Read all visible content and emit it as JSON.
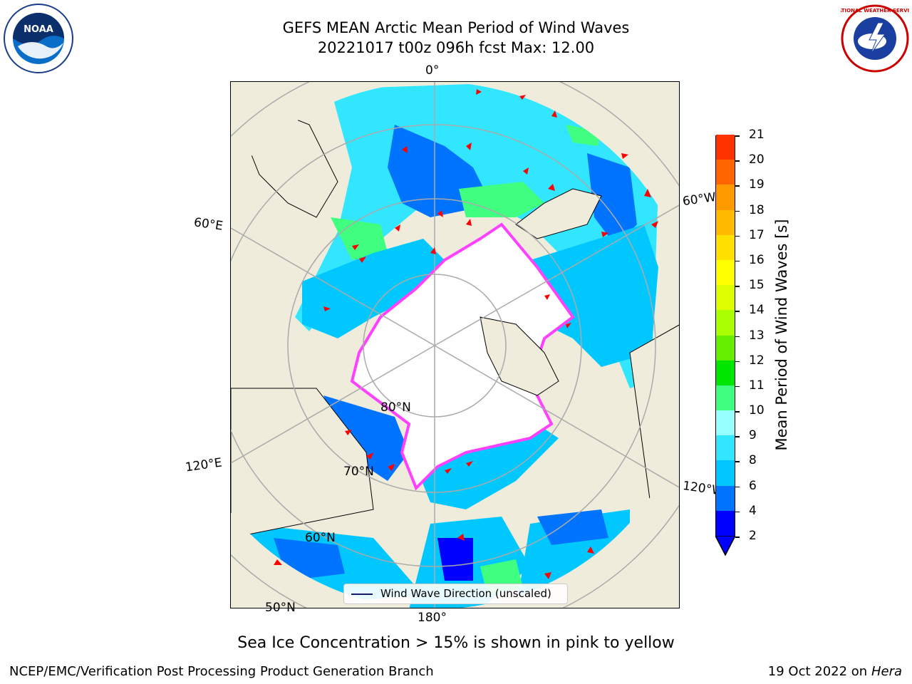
{
  "header": {
    "title_line1": "GEFS MEAN Arctic Mean Period of Wind Waves",
    "title_line2": "20221017 t00z 096h fcst   Max: 12.00"
  },
  "logos": {
    "left": "NOAA",
    "right": "NATIONAL WEATHER SERVICE"
  },
  "map": {
    "labels": {
      "lon_0": "0°",
      "lon_60w": "60°W",
      "lon_60e": "60°E",
      "lon_120e": "120°E",
      "lon_120w": "120°W",
      "lon_180": "180°",
      "lat_80": "80°N",
      "lat_70": "70°N",
      "lat_60": "60°N",
      "lat_50": "50°N"
    },
    "legend": "Wind Wave Direction (unscaled)",
    "colors": {
      "land": "#efecdc",
      "ice": "#ffffff",
      "ice_edge": "#ff40ff",
      "arrows": "#ff0000"
    }
  },
  "colorbar": {
    "label": "Mean Period of Wind Waves [s]",
    "ticks": [
      "2",
      "4",
      "6",
      "8",
      "9",
      "10",
      "11",
      "12",
      "13",
      "14",
      "15",
      "16",
      "17",
      "18",
      "19",
      "20",
      "21"
    ],
    "colors": [
      "#0000ff",
      "#0073ff",
      "#00c8ff",
      "#32e6ff",
      "#96ffff",
      "#40ff80",
      "#00e600",
      "#66ee00",
      "#aaff00",
      "#ddff00",
      "#ffff00",
      "#ffe000",
      "#ffbb00",
      "#ff9900",
      "#ff6600",
      "#ff3300",
      "#ff0000"
    ]
  },
  "caption": "Sea Ice Concentration > 15% is shown in pink to yellow",
  "footer": {
    "left": "NCEP/EMC/Verification Post Processing Product Generation Branch",
    "right_date": "19 Oct 2022 on ",
    "right_host": "Hera"
  }
}
